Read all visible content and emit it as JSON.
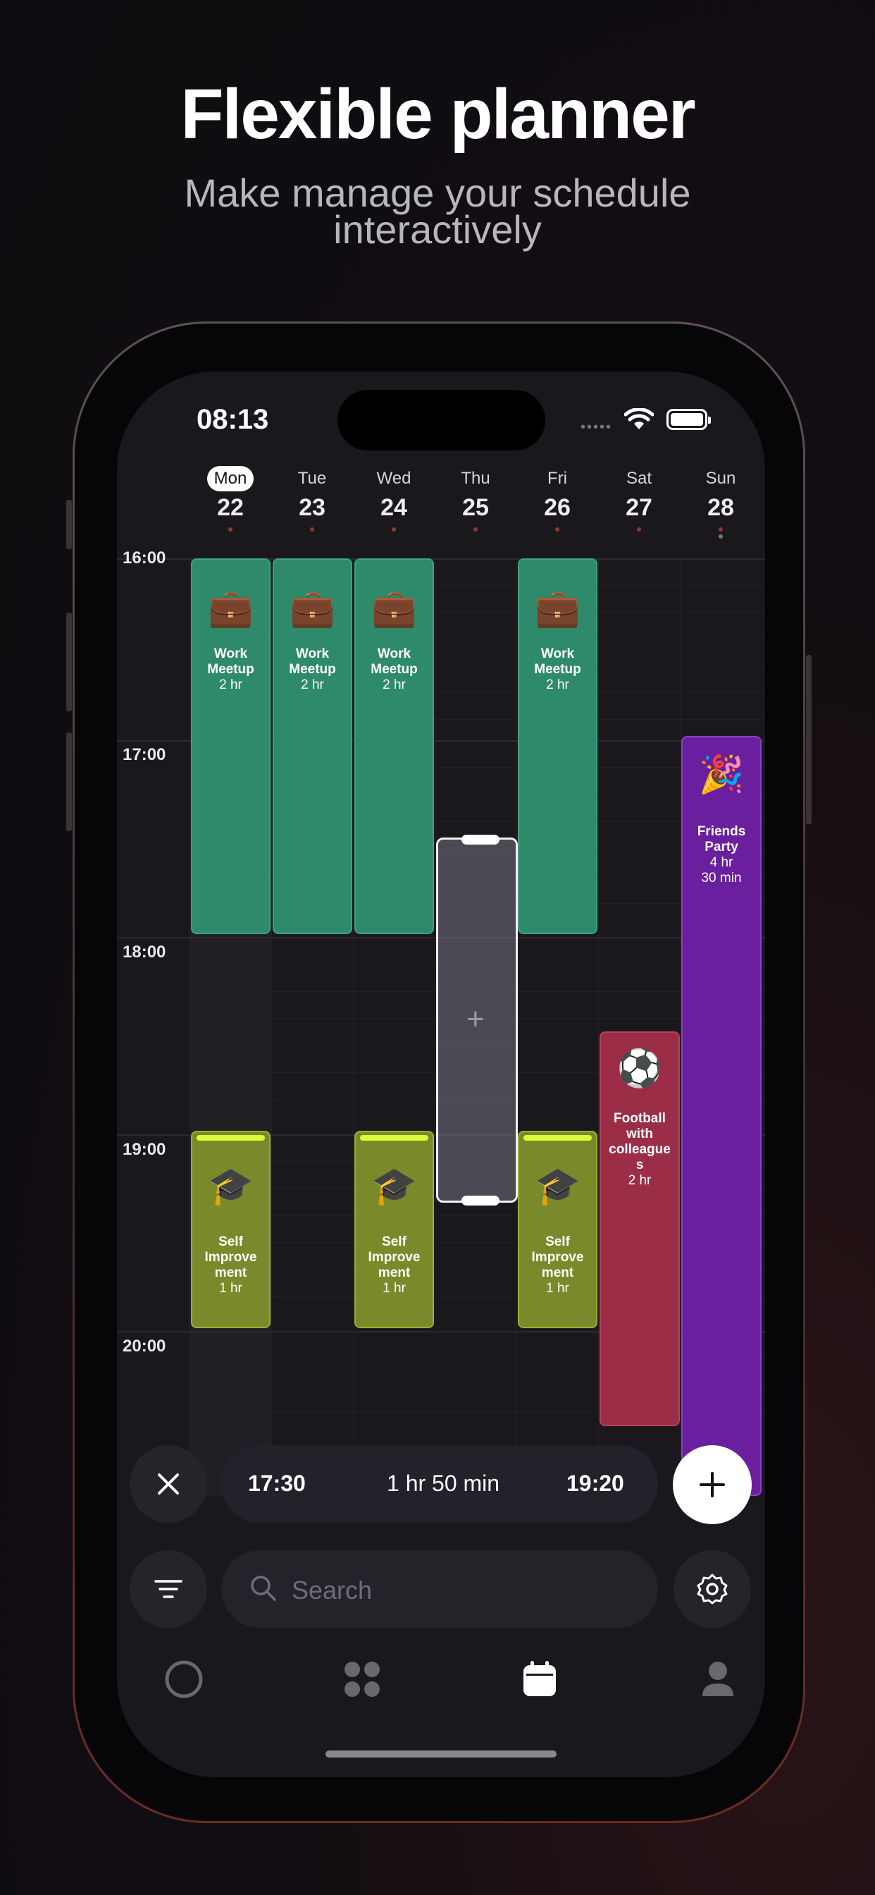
{
  "headline": "Flexible planner",
  "subline": [
    "Make manage your schedule",
    "interactively"
  ],
  "status_bar": {
    "time": "08:13"
  },
  "week": [
    {
      "day": "Mon",
      "date": "22",
      "selected": true
    },
    {
      "day": "Tue",
      "date": "23"
    },
    {
      "day": "Wed",
      "date": "24"
    },
    {
      "day": "Thu",
      "date": "25"
    },
    {
      "day": "Fri",
      "date": "26"
    },
    {
      "day": "Sat",
      "date": "27"
    },
    {
      "day": "Sun",
      "date": "28"
    }
  ],
  "time_labels": [
    "16:00",
    "17:00",
    "18:00",
    "19:00",
    "20:00"
  ],
  "events": {
    "work": {
      "title_1": "Work",
      "title_2": "Meetup",
      "duration": "2 hr",
      "emoji": "💼"
    },
    "self": {
      "title_1": "Self",
      "title_2": "Improve",
      "title_3": "ment",
      "duration": "1 hr",
      "emoji": "🎓"
    },
    "football": {
      "title_1": "Football",
      "title_2": "with",
      "title_3": "colleague",
      "title_4": "s",
      "duration": "2 hr",
      "emoji": "⚽"
    },
    "party": {
      "title_1": "Friends",
      "title_2": "Party",
      "duration_1": "4 hr",
      "duration_2": "30 min",
      "emoji": "🎉"
    }
  },
  "selection": {
    "start": "17:30",
    "duration": "1 hr 50 min",
    "end": "19:20"
  },
  "search": {
    "placeholder": "Search"
  },
  "colors": {
    "work": "#2e8a6b",
    "self": "#7a8a2a",
    "football": "#9c2d46",
    "party": "#6a1f9e"
  },
  "icons": {
    "close": "close-icon",
    "add": "plus-icon",
    "filter": "filter-icon",
    "settings": "settings-icon",
    "tabs": [
      "circle-icon",
      "grid-icon",
      "calendar-icon",
      "profile-icon"
    ]
  }
}
